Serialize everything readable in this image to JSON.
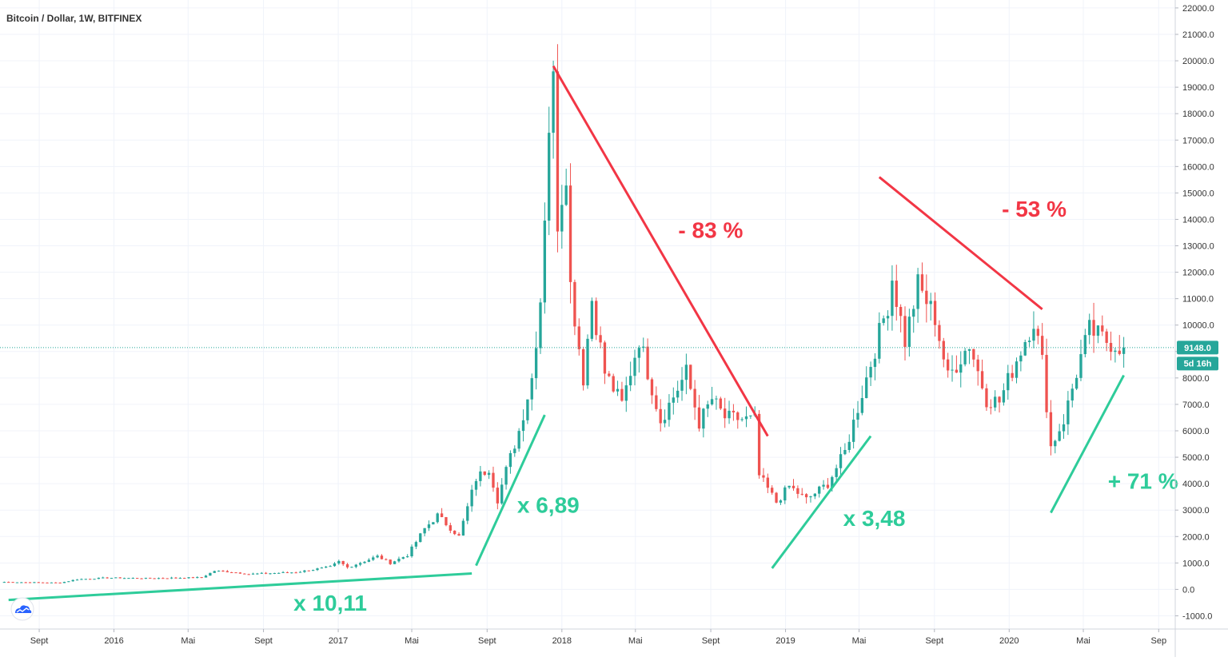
{
  "header": {
    "symbol": "Bitcoin / Dollar, 1W, BITFINEX"
  },
  "colors": {
    "up": "#26a69a",
    "down": "#ef5350",
    "anno_red": "#f23645",
    "anno_green": "#2ecc9a",
    "grid": "#f0f3fa"
  },
  "logo_icon": "tradingview-cloud-icon",
  "price_tag": {
    "value": "9148.0",
    "countdown": "5d 16h",
    "price": 9148
  },
  "chart_data": {
    "type": "candlestick",
    "title": "Bitcoin / Dollar, 1W, BITFINEX",
    "ylim": [
      -1500,
      22300
    ],
    "xlim": [
      "2015-06-29",
      "2020-09-28"
    ],
    "y_ticks": [
      -1000,
      0,
      1000,
      2000,
      3000,
      4000,
      5000,
      6000,
      7000,
      8000,
      9000,
      10000,
      11000,
      12000,
      13000,
      14000,
      15000,
      16000,
      17000,
      18000,
      19000,
      20000,
      21000,
      22000
    ],
    "y_tick_labels": [
      "-1000.0",
      "0.0",
      "1000.0",
      "2000.0",
      "3000.0",
      "4000.0",
      "5000.0",
      "6000.0",
      "7000.0",
      "8000.0",
      "",
      "10000.0",
      "11000.0",
      "12000.0",
      "13000.0",
      "14000.0",
      "15000.0",
      "16000.0",
      "17000.0",
      "18000.0",
      "19000.0",
      "20000.0",
      "21000.0",
      "22000.0"
    ],
    "x_ticks": [
      {
        "date": "2015-09-01",
        "label": "Sept"
      },
      {
        "date": "2016-01-01",
        "label": "2016"
      },
      {
        "date": "2016-05-01",
        "label": "Mai"
      },
      {
        "date": "2016-09-01",
        "label": "Sept"
      },
      {
        "date": "2017-01-01",
        "label": "2017"
      },
      {
        "date": "2017-05-01",
        "label": "Mai"
      },
      {
        "date": "2017-09-01",
        "label": "Sept"
      },
      {
        "date": "2018-01-01",
        "label": "2018"
      },
      {
        "date": "2018-05-01",
        "label": "Mai"
      },
      {
        "date": "2018-09-01",
        "label": "Sept"
      },
      {
        "date": "2019-01-01",
        "label": "2019"
      },
      {
        "date": "2019-05-01",
        "label": "Mai"
      },
      {
        "date": "2019-09-01",
        "label": "Sept"
      },
      {
        "date": "2020-01-01",
        "label": "2020"
      },
      {
        "date": "2020-05-01",
        "label": "Mai"
      },
      {
        "date": "2020-09-01",
        "label": "Sep"
      }
    ],
    "price_line": 9148,
    "anchors": [
      [
        "2015-07-06",
        280
      ],
      [
        "2015-10-05",
        250
      ],
      [
        "2015-11-02",
        380
      ],
      [
        "2015-12-21",
        440
      ],
      [
        "2016-02-22",
        420
      ],
      [
        "2016-05-23",
        450
      ],
      [
        "2016-06-13",
        700
      ],
      [
        "2016-07-11",
        660
      ],
      [
        "2016-08-08",
        580
      ],
      [
        "2016-10-24",
        650
      ],
      [
        "2016-12-19",
        850
      ],
      [
        "2017-01-02",
        1050
      ],
      [
        "2017-01-16",
        830
      ],
      [
        "2017-03-06",
        1250
      ],
      [
        "2017-03-27",
        1000
      ],
      [
        "2017-04-24",
        1300
      ],
      [
        "2017-05-22",
        2300
      ],
      [
        "2017-06-12",
        2800
      ],
      [
        "2017-07-17",
        2000
      ],
      [
        "2017-08-14",
        4200
      ],
      [
        "2017-09-04",
        4600
      ],
      [
        "2017-09-18",
        3400
      ],
      [
        "2017-10-02",
        4500
      ],
      [
        "2017-10-23",
        6000
      ],
      [
        "2017-11-13",
        8000
      ],
      [
        "2017-11-27",
        11000
      ],
      [
        "2017-12-11",
        17600
      ],
      [
        "2017-12-18",
        19100
      ],
      [
        "2017-12-25",
        14000
      ],
      [
        "2018-01-08",
        16000
      ],
      [
        "2018-01-15",
        11500
      ],
      [
        "2018-02-05",
        8000
      ],
      [
        "2018-02-19",
        11000
      ],
      [
        "2018-03-12",
        8200
      ],
      [
        "2018-04-09",
        7000
      ],
      [
        "2018-05-07",
        9500
      ],
      [
        "2018-06-11",
        6400
      ],
      [
        "2018-07-23",
        8200
      ],
      [
        "2018-08-13",
        6300
      ],
      [
        "2018-09-03",
        7200
      ],
      [
        "2018-09-24",
        6500
      ],
      [
        "2018-11-12",
        6400
      ],
      [
        "2018-11-19",
        4300
      ],
      [
        "2018-12-17",
        3300
      ],
      [
        "2019-01-07",
        3900
      ],
      [
        "2019-02-04",
        3400
      ],
      [
        "2019-03-11",
        4000
      ],
      [
        "2019-04-08",
        5200
      ],
      [
        "2019-05-13",
        8000
      ],
      [
        "2019-06-17",
        10800
      ],
      [
        "2019-06-24",
        11800
      ],
      [
        "2019-07-15",
        9400
      ],
      [
        "2019-08-05",
        11500
      ],
      [
        "2019-09-02",
        10300
      ],
      [
        "2019-09-23",
        8000
      ],
      [
        "2019-10-28",
        9300
      ],
      [
        "2019-11-25",
        7200
      ],
      [
        "2019-12-16",
        7100
      ],
      [
        "2020-01-13",
        8700
      ],
      [
        "2020-02-10",
        10200
      ],
      [
        "2020-02-24",
        8600
      ],
      [
        "2020-03-09",
        5400
      ],
      [
        "2020-03-30",
        6400
      ],
      [
        "2020-04-27",
        8800
      ],
      [
        "2020-05-11",
        9800
      ],
      [
        "2020-06-08",
        9400
      ],
      [
        "2020-07-06",
        9148
      ]
    ],
    "annotations": [
      {
        "text": "x 10,11",
        "color": "green",
        "line": [
          [
            "2015-07-13",
            -400
          ],
          [
            "2017-08-07",
            600
          ]
        ],
        "label_at": [
          "2016-10-20",
          -800
        ]
      },
      {
        "text": "x 6,89",
        "color": "green",
        "line": [
          [
            "2017-08-14",
            900
          ],
          [
            "2017-12-04",
            6600
          ]
        ],
        "label_at": [
          "2017-10-20",
          2900
        ]
      },
      {
        "text": "- 83 %",
        "color": "red",
        "line": [
          [
            "2017-12-18",
            19800
          ],
          [
            "2018-12-03",
            5800
          ]
        ],
        "label_at": [
          "2018-07-10",
          13300
        ]
      },
      {
        "text": "x 3,48",
        "color": "green",
        "line": [
          [
            "2018-12-10",
            800
          ],
          [
            "2019-05-20",
            5800
          ]
        ],
        "label_at": [
          "2019-04-05",
          2400
        ]
      },
      {
        "text": "- 53 %",
        "color": "red",
        "line": [
          [
            "2019-06-03",
            15600
          ],
          [
            "2020-02-24",
            10600
          ]
        ],
        "label_at": [
          "2019-12-20",
          14100
        ]
      },
      {
        "text": "+ 71 %",
        "color": "green",
        "line": [
          [
            "2020-03-09",
            2900
          ],
          [
            "2020-07-06",
            8100
          ]
        ],
        "label_at": [
          "2020-06-10",
          3800
        ]
      }
    ]
  }
}
